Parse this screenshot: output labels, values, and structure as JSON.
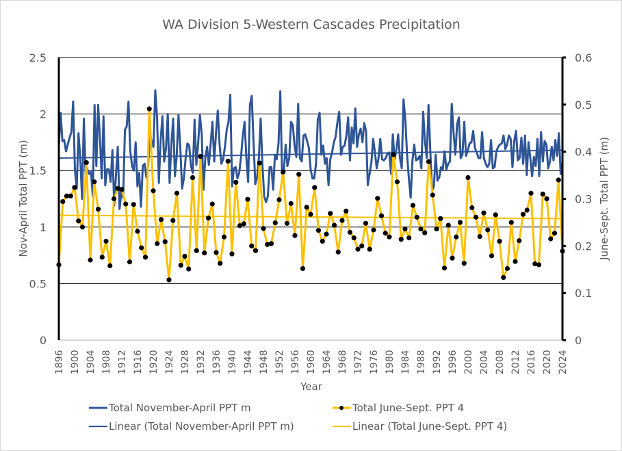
{
  "chart_data": {
    "type": "line",
    "title": "WA Division 5-Western Cascades Precipitation",
    "xlabel": "Year",
    "ylabel": "Nov-April Total PPT (m)",
    "y2label": "June-Sept. Total PPT (m)",
    "xlim": [
      1896,
      2024
    ],
    "ylim": [
      0,
      2.5
    ],
    "y2lim": [
      0,
      0.6
    ],
    "yticks": [
      "0",
      "0.5",
      "1",
      "1.5",
      "2",
      "2.5"
    ],
    "y2ticks": [
      "0",
      "0.1",
      "0.2",
      "0.3",
      "0.4",
      "0.5",
      "0.6"
    ],
    "xticks": [
      "1896",
      "1900",
      "1904",
      "1908",
      "1912",
      "1916",
      "1920",
      "1924",
      "1928",
      "1932",
      "1936",
      "1940",
      "1944",
      "1948",
      "1952",
      "1956",
      "1960",
      "1964",
      "1968",
      "1972",
      "1976",
      "1980",
      "1984",
      "1988",
      "1992",
      "1996",
      "2000",
      "2004",
      "2008",
      "2012",
      "2016",
      "2020",
      "2024"
    ],
    "grid": true,
    "legend_position": "bottom",
    "colors": {
      "nov_apr": "#2f5597",
      "jun_sep": "#ffc000",
      "marker": "#000000"
    },
    "legend": [
      "Total November-April PPT m",
      "Total June-Sept. PPT 4",
      "Linear (Total November-April PPT m)",
      "Linear (Total June-Sept. PPT 4)"
    ],
    "series": [
      {
        "name": "Total November-April PPT m",
        "axis": "left",
        "values": [
          1.72,
          2.01,
          1.76,
          1.77,
          1.67,
          1.73,
          1.79,
          1.84,
          2.11,
          1.51,
          1.34,
          1.83,
          1.61,
          1.25,
          1.96,
          1.46,
          1.51,
          1.47,
          1.49,
          1.27,
          2.08,
          1.54,
          2.08,
          1.79,
          1.43,
          1.98,
          1.37,
          1.51,
          1.51,
          1.4,
          1.68,
          1.19,
          1.46,
          1.71,
          1.16,
          1.31,
          1.26,
          1.86,
          1.89,
          2.11,
          1.67,
          1.54,
          1.5,
          1.75,
          1.36,
          1.48,
          1.18,
          1.54,
          1.56,
          1.44,
          1.55,
          1.83,
          1.75,
          1.71,
          2.21,
          1.97,
          1.39,
          1.77,
          1.98,
          1.58,
          1.7,
          2.0,
          1.39,
          1.73,
          1.96,
          1.45,
          1.63,
          1.99,
          1.7,
          1.34,
          1.43,
          1.61,
          1.74,
          1.72,
          1.54,
          1.48,
          1.95,
          1.55,
          1.74,
          1.99,
          1.82,
          1.33,
          1.61,
          1.71,
          1.55,
          1.74,
          1.93,
          1.58,
          1.83,
          2.03,
          1.73,
          1.56,
          1.6,
          1.71,
          1.86,
          1.93,
          2.17,
          1.36,
          1.52,
          1.53,
          1.43,
          1.48,
          1.62,
          1.81,
          1.93,
          1.61,
          1.4,
          2.08,
          2.16,
          1.76,
          1.38,
          1.44,
          1.61,
          1.96,
          1.55,
          1.27,
          1.22,
          1.27,
          1.53,
          1.53,
          1.33,
          1.64,
          1.6,
          1.74,
          2.2,
          1.47,
          1.5,
          1.73,
          1.54,
          1.61,
          1.93,
          1.9,
          1.72,
          1.62,
          2.09,
          1.61,
          1.58,
          1.81,
          1.82,
          1.76,
          1.7,
          1.51,
          1.43,
          1.43,
          1.56,
          1.95,
          2.01,
          1.64,
          1.72,
          1.56,
          1.61,
          1.37,
          1.6,
          1.66,
          1.75,
          1.8,
          1.93,
          2.02,
          1.64,
          1.71,
          1.72,
          1.81,
          1.97,
          1.59,
          1.88,
          1.74,
          2.05,
          1.71,
          1.82,
          1.87,
          1.75,
          1.92,
          1.85,
          1.37,
          1.47,
          1.57,
          1.78,
          1.66,
          1.52,
          1.61,
          1.78,
          1.6,
          1.59,
          1.61,
          1.65,
          1.66,
          1.47,
          1.82,
          1.6,
          1.68,
          1.82,
          1.61,
          1.52,
          2.13,
          1.95,
          1.64,
          1.43,
          1.26,
          1.59,
          1.73,
          1.59,
          1.6,
          1.63,
          1.52,
          2.02,
          1.76,
          1.61,
          2.08,
          1.67,
          1.32,
          1.36,
          1.64,
          1.41,
          1.44,
          1.53,
          1.51,
          1.67,
          1.51,
          1.56,
          1.58,
          2.09,
          1.84,
          1.64,
          1.91,
          1.97,
          1.61,
          1.64,
          1.93,
          1.63,
          1.68,
          1.74,
          1.75,
          1.85,
          1.7,
          1.66,
          1.61,
          1.61,
          1.84,
          1.61,
          1.56,
          1.53,
          1.56,
          1.77,
          1.52,
          1.53,
          1.67,
          1.71,
          1.73,
          1.74,
          1.81,
          1.69,
          1.73,
          1.81,
          1.78,
          1.53,
          1.76,
          1.85,
          1.59,
          1.61,
          1.79,
          1.56,
          1.81,
          1.46,
          1.75,
          1.61,
          1.45,
          1.62,
          1.54,
          1.78,
          1.45,
          1.84,
          1.58,
          1.76,
          1.73,
          1.52,
          1.58,
          1.71,
          1.59,
          1.77,
          1.63,
          1.83,
          1.47,
          1.57
        ]
      },
      {
        "name": "Total June-Sept. PPT 4",
        "axis": "right",
        "values": [
          0.16,
          0.294,
          0.306,
          0.306,
          0.324,
          0.253,
          0.24,
          0.377,
          0.17,
          0.336,
          0.278,
          0.176,
          0.21,
          0.158,
          0.3,
          0.322,
          0.32,
          0.289,
          0.166,
          0.288,
          0.231,
          0.196,
          0.176,
          0.491,
          0.317,
          0.205,
          0.256,
          0.209,
          0.128,
          0.254,
          0.312,
          0.159,
          0.178,
          0.151,
          0.345,
          0.19,
          0.39,
          0.185,
          0.259,
          0.289,
          0.186,
          0.163,
          0.219,
          0.38,
          0.183,
          0.335,
          0.243,
          0.247,
          0.299,
          0.2,
          0.19,
          0.376,
          0.237,
          0.203,
          0.205,
          0.249,
          0.298,
          0.357,
          0.248,
          0.29,
          0.222,
          0.352,
          0.152,
          0.282,
          0.267,
          0.324,
          0.233,
          0.21,
          0.225,
          0.269,
          0.244,
          0.187,
          0.254,
          0.274,
          0.229,
          0.217,
          0.193,
          0.2,
          0.248,
          0.193,
          0.234,
          0.301,
          0.264,
          0.227,
          0.219,
          0.394,
          0.336,
          0.214,
          0.236,
          0.217,
          0.286,
          0.261,
          0.236,
          0.228,
          0.379,
          0.308,
          0.236,
          0.258,
          0.153,
          0.244,
          0.174,
          0.219,
          0.25,
          0.163,
          0.345,
          0.281,
          0.261,
          0.22,
          0.27,
          0.234,
          0.179,
          0.266,
          0.21,
          0.133,
          0.152,
          0.25,
          0.167,
          0.211,
          0.267,
          0.276,
          0.312,
          0.162,
          0.16,
          0.31,
          0.3,
          0.215,
          0.227,
          0.34,
          0.189
        ]
      }
    ],
    "trendlines": [
      {
        "name": "Linear (Total November-April PPT m)",
        "axis": "left",
        "start": 1.61,
        "end": 1.68
      },
      {
        "name": "Linear (Total June-Sept. PPT 4)",
        "axis": "right",
        "start": 0.265,
        "end": 0.258
      }
    ]
  }
}
